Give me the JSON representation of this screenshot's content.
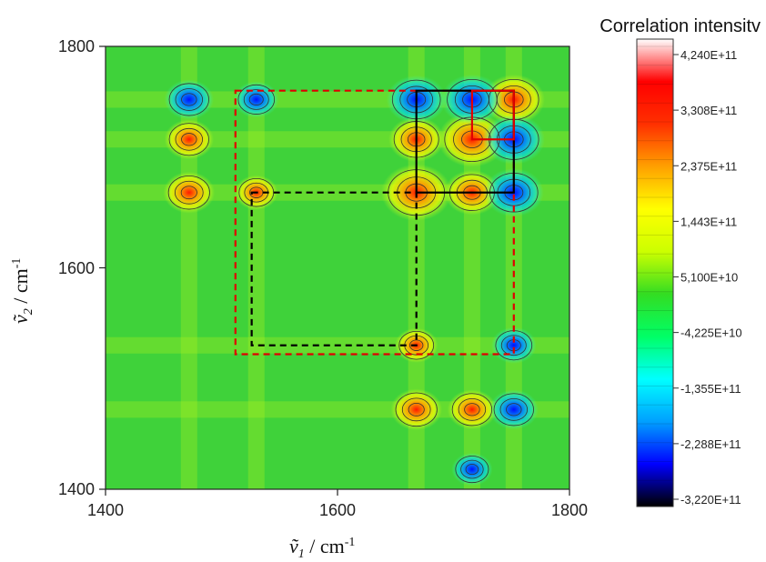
{
  "chart_data": {
    "type": "heatmap",
    "subtype": "2D correlation synchronous contour map",
    "title": "",
    "xlabel": {
      "symbol": "ṽ",
      "subscript": "1",
      "unit": " / cm",
      "superscript": "-1"
    },
    "ylabel": {
      "symbol": "ṽ",
      "subscript": "2",
      "unit": " / cm",
      "superscript": "-1"
    },
    "xlim": [
      1400,
      1800
    ],
    "ylim": [
      1400,
      1800
    ],
    "x_ticks": [
      "1400",
      "1600",
      "1800"
    ],
    "y_ticks": [
      "1400",
      "1600",
      "1800"
    ],
    "grid": false,
    "diagonal_peaks": [
      1472,
      1530,
      1668,
      1716,
      1752
    ],
    "peaks": [
      {
        "x": 1668,
        "y": 1668,
        "sign": "positive",
        "relative_intensity": 0.95
      },
      {
        "x": 1752,
        "y": 1752,
        "sign": "positive",
        "relative_intensity": 0.75
      },
      {
        "x": 1716,
        "y": 1716,
        "sign": "positive",
        "relative_intensity": 0.9
      },
      {
        "x": 1472,
        "y": 1716,
        "sign": "positive",
        "relative_intensity": 0.45
      },
      {
        "x": 1716,
        "y": 1472,
        "sign": "positive",
        "relative_intensity": 0.45
      },
      {
        "x": 1472,
        "y": 1668,
        "sign": "positive",
        "relative_intensity": 0.5
      },
      {
        "x": 1668,
        "y": 1472,
        "sign": "positive",
        "relative_intensity": 0.5
      },
      {
        "x": 1716,
        "y": 1668,
        "sign": "positive",
        "relative_intensity": 0.6
      },
      {
        "x": 1668,
        "y": 1716,
        "sign": "positive",
        "relative_intensity": 0.6
      },
      {
        "x": 1668,
        "y": 1530,
        "sign": "positive",
        "relative_intensity": 0.3
      },
      {
        "x": 1530,
        "y": 1668,
        "sign": "positive",
        "relative_intensity": 0.3
      },
      {
        "x": 1752,
        "y": 1668,
        "sign": "negative",
        "relative_intensity": 0.7
      },
      {
        "x": 1668,
        "y": 1752,
        "sign": "negative",
        "relative_intensity": 0.7
      },
      {
        "x": 1752,
        "y": 1716,
        "sign": "negative",
        "relative_intensity": 0.75
      },
      {
        "x": 1716,
        "y": 1752,
        "sign": "negative",
        "relative_intensity": 0.75
      },
      {
        "x": 1472,
        "y": 1752,
        "sign": "negative",
        "relative_intensity": 0.45
      },
      {
        "x": 1752,
        "y": 1472,
        "sign": "negative",
        "relative_intensity": 0.45
      },
      {
        "x": 1752,
        "y": 1530,
        "sign": "negative",
        "relative_intensity": 0.35
      },
      {
        "x": 1530,
        "y": 1752,
        "sign": "negative",
        "relative_intensity": 0.35
      },
      {
        "x": 1716,
        "y": 1418,
        "sign": "negative",
        "relative_intensity": 0.25
      }
    ],
    "annotation_boxes": [
      {
        "style": "dashed",
        "color": "#e00000",
        "x": [
          1512,
          1752
        ],
        "y": [
          1522,
          1760
        ]
      },
      {
        "style": "dashed",
        "color": "#000000",
        "x": [
          1526,
          1668
        ],
        "y": [
          1530,
          1668
        ]
      },
      {
        "style": "solid",
        "color": "#000000",
        "x": [
          1668,
          1752
        ],
        "y": [
          1668,
          1760
        ]
      },
      {
        "style": "solid",
        "color": "#e00000",
        "x": [
          1716,
          1752
        ],
        "y": [
          1716,
          1760
        ]
      }
    ],
    "colorbar": {
      "title": "Correlation intensitv",
      "min": -322000000000.0,
      "max": 424000000000.0,
      "labels": [
        "4,240E+11",
        "3,308E+11",
        "2,375E+11",
        "1,443E+11",
        "5,100E+10",
        "-4,225E+10",
        "-1,355E+11",
        "-2,288E+11",
        "-3,220E+11"
      ],
      "colors": [
        "#000000",
        "#0000ff",
        "#00a0ff",
        "#00ffff",
        "#00ff66",
        "#33dd22",
        "#ccff00",
        "#ffff00",
        "#ffa000",
        "#ff3000",
        "#ff0000",
        "#ffffff"
      ]
    }
  }
}
